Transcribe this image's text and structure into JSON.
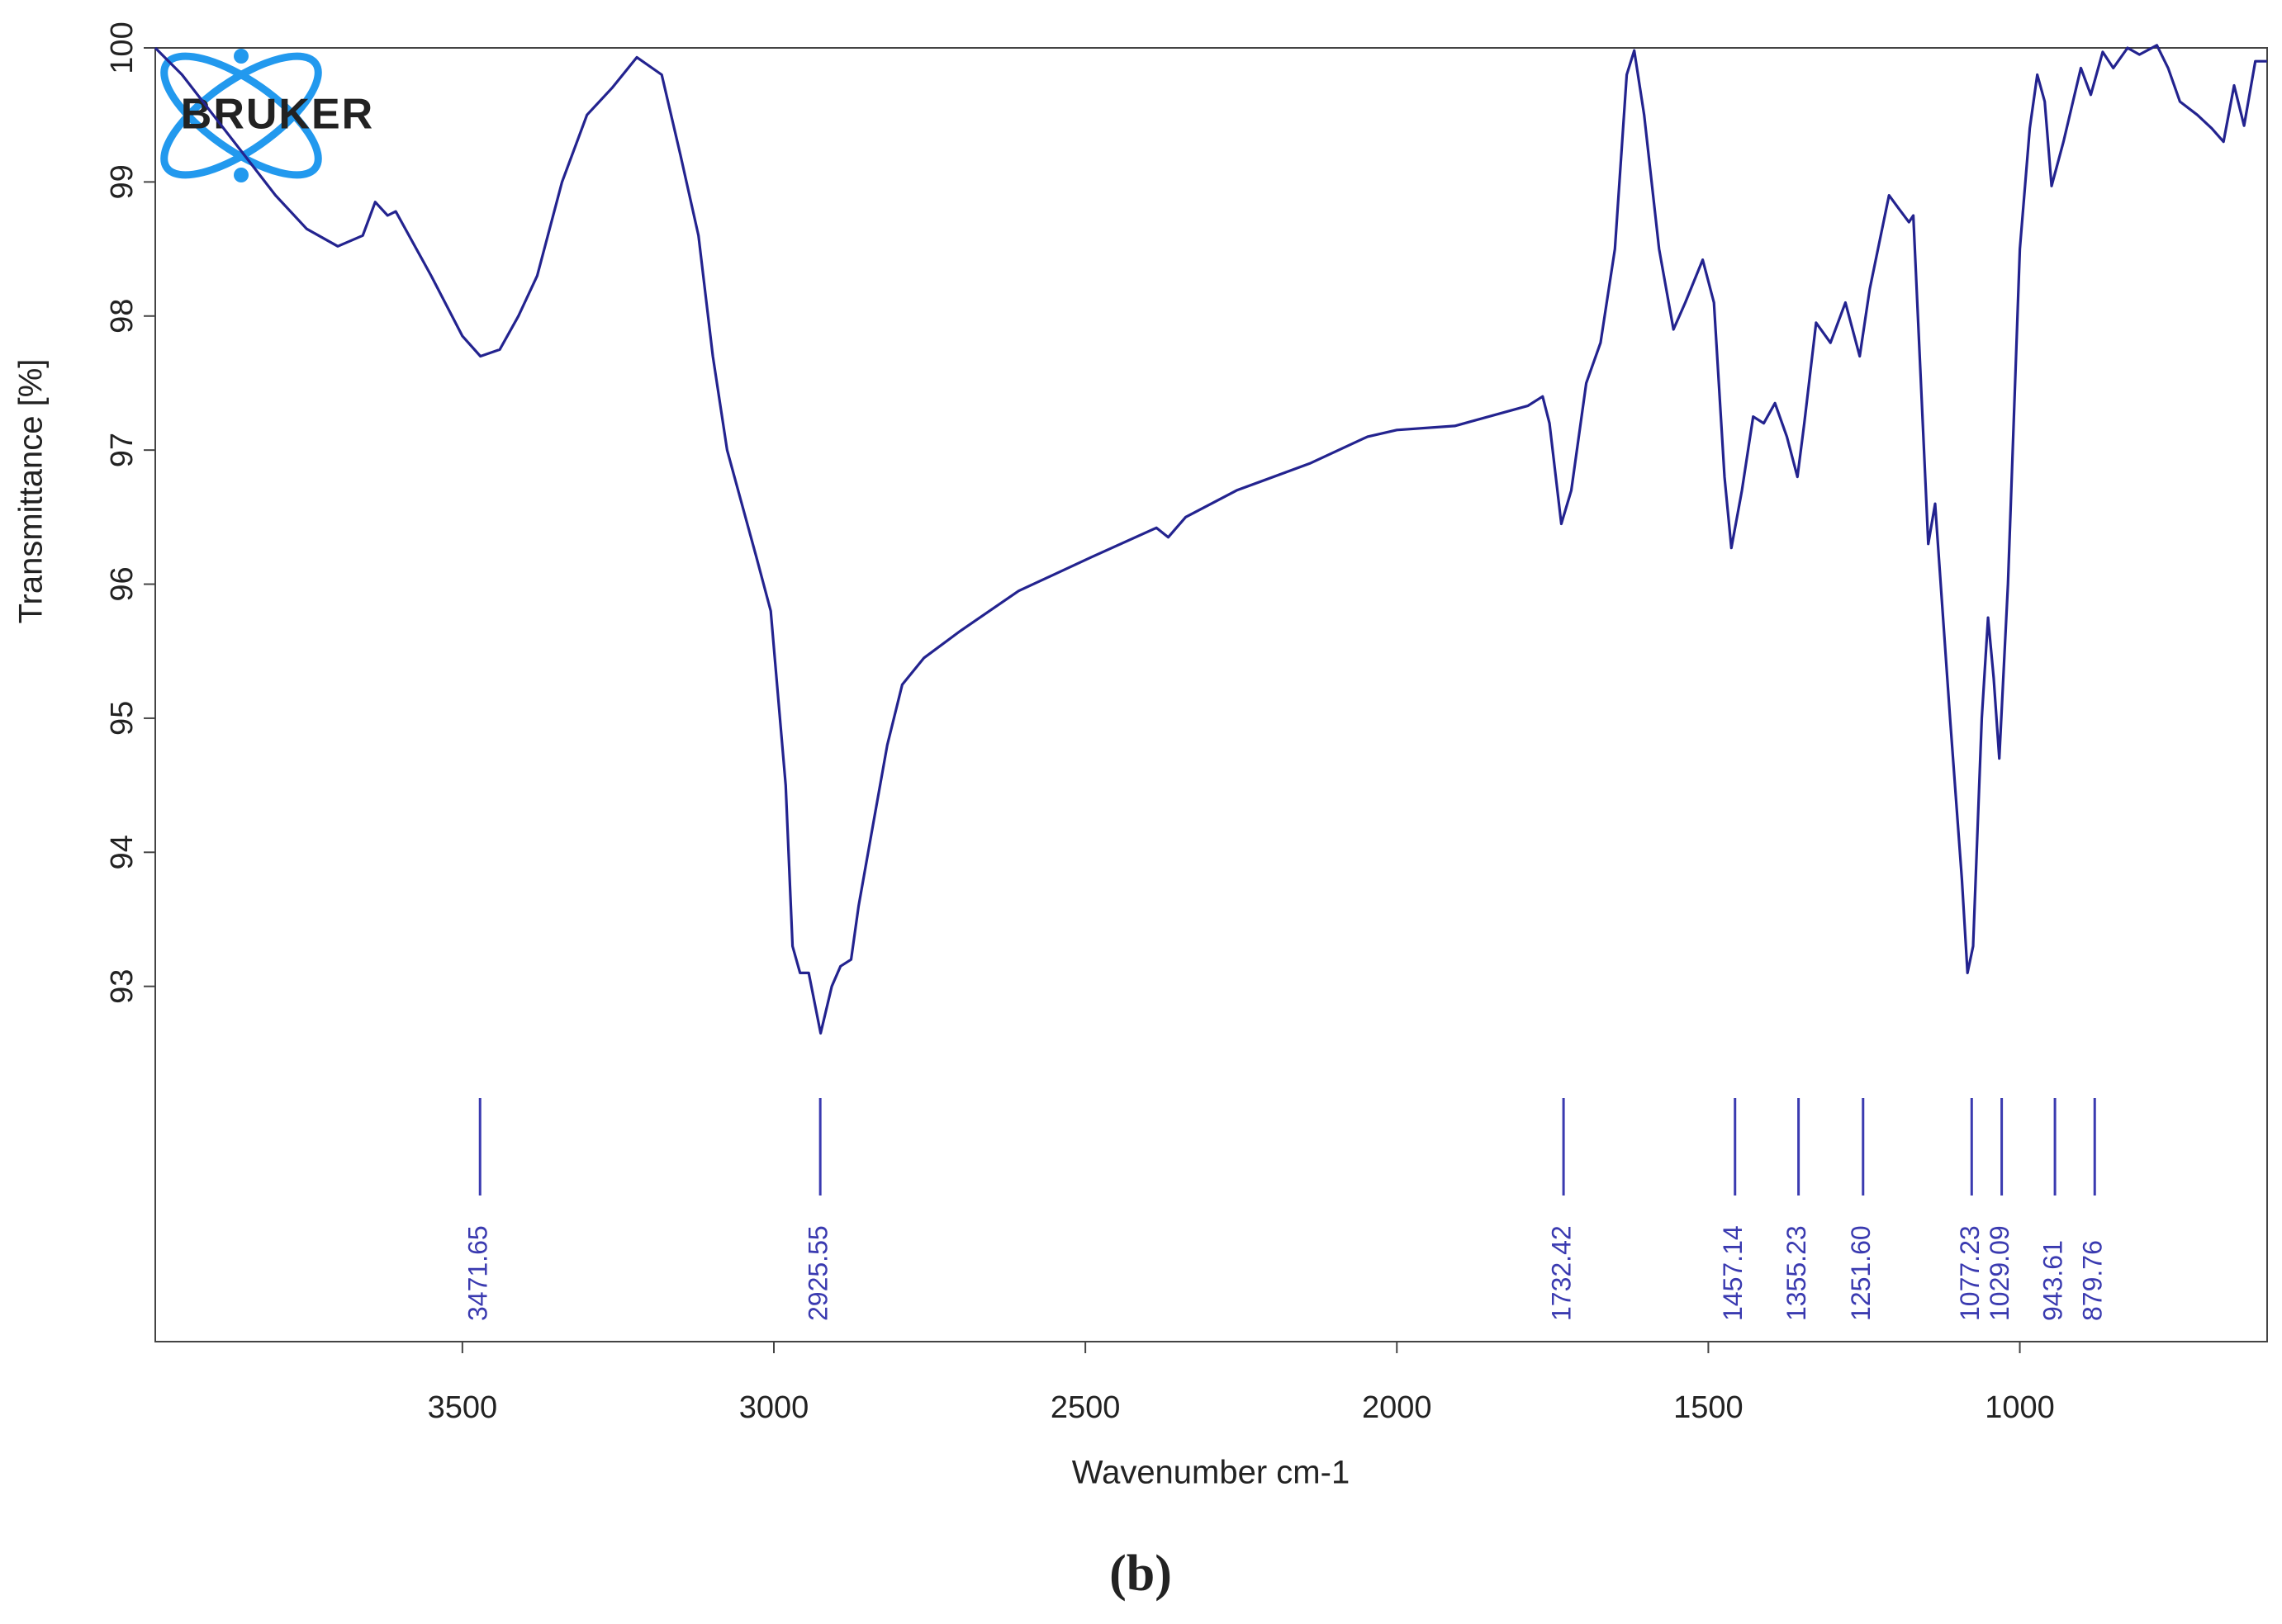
{
  "chart_data": {
    "type": "line",
    "logo": "BRUKER",
    "caption": "(b)",
    "x_label": "Wavenumber cm-1",
    "y_label": "Transmittance [%]",
    "xlim": [
      3993,
      603
    ],
    "ylim": [
      90.35,
      100
    ],
    "xticks": [
      3500,
      3000,
      2500,
      2000,
      1500,
      1000
    ],
    "yticks": [
      93,
      94,
      95,
      96,
      97,
      98,
      99,
      100
    ],
    "series": [
      {
        "name": "Transmittance",
        "color": "#23238f",
        "x": [
          3993,
          3950,
          3900,
          3850,
          3800,
          3750,
          3700,
          3660,
          3640,
          3620,
          3607,
          3550,
          3500,
          3471,
          3440,
          3410,
          3380,
          3340,
          3300,
          3260,
          3220,
          3180,
          3150,
          3121,
          3098,
          3075,
          3028,
          3005,
          2981,
          2970,
          2958,
          2944,
          2925,
          2907,
          2893,
          2876,
          2864,
          2841,
          2818,
          2794,
          2759,
          2701,
          2607,
          2491,
          2386,
          2367,
          2339,
          2257,
          2140,
          2047,
          2000,
          1907,
          1790,
          1766,
          1755,
          1736,
          1720,
          1696,
          1673,
          1650,
          1631,
          1619,
          1603,
          1579,
          1556,
          1537,
          1509,
          1491,
          1474,
          1463,
          1446,
          1428,
          1411,
          1393,
          1374,
          1357,
          1346,
          1327,
          1304,
          1280,
          1257,
          1241,
          1210,
          1194,
          1178,
          1171,
          1147,
          1136,
          1112,
          1093,
          1084,
          1075,
          1061,
          1051,
          1042,
          1033,
          1019,
          1000,
          984,
          972,
          960,
          949,
          930,
          902,
          886,
          867,
          850,
          827,
          808,
          780,
          762,
          743,
          715,
          692,
          673,
          656,
          640,
          622,
          603
        ],
        "values": [
          100,
          99.8,
          99.5,
          99.2,
          98.9,
          98.65,
          98.52,
          98.6,
          98.85,
          98.75,
          98.78,
          98.3,
          97.85,
          97.7,
          97.75,
          98.0,
          98.3,
          99.0,
          99.5,
          99.7,
          99.93,
          99.8,
          99.2,
          98.6,
          97.7,
          97.0,
          96.2,
          95.8,
          94.5,
          93.3,
          93.1,
          93.1,
          92.65,
          93.0,
          93.15,
          93.2,
          93.6,
          94.2,
          94.8,
          95.25,
          95.45,
          95.65,
          95.95,
          96.2,
          96.42,
          96.35,
          96.5,
          96.7,
          96.9,
          97.1,
          97.15,
          97.18,
          97.33,
          97.4,
          97.2,
          96.45,
          96.7,
          97.5,
          97.8,
          98.5,
          99.8,
          99.98,
          99.5,
          98.5,
          97.9,
          98.1,
          98.42,
          98.1,
          96.8,
          96.27,
          96.7,
          97.25,
          97.2,
          97.35,
          97.1,
          96.8,
          97.2,
          97.95,
          97.8,
          98.1,
          97.7,
          98.2,
          98.9,
          98.8,
          98.7,
          98.75,
          96.3,
          96.6,
          95.0,
          93.8,
          93.1,
          93.3,
          95.0,
          95.75,
          95.3,
          94.7,
          96.0,
          98.5,
          99.4,
          99.8,
          99.6,
          98.97,
          99.3,
          99.85,
          99.65,
          99.97,
          99.85,
          100,
          99.95,
          100.02,
          99.85,
          99.6,
          99.5,
          99.4,
          99.3,
          99.72,
          99.42,
          99.9,
          99.9
        ]
      }
    ],
    "peaks": [
      3471.65,
      2925.55,
      1732.42,
      1457.14,
      1355.23,
      {
        "value": 1251.6,
        "label": "1251.60"
      },
      1077.23,
      1029.09,
      943.61,
      879.76
    ],
    "peak_color": "#3a3ab0"
  }
}
